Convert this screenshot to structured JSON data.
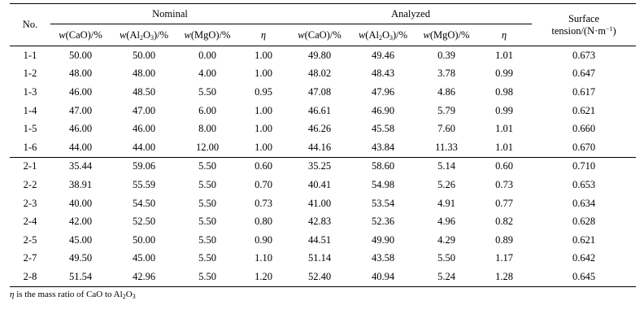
{
  "headers": {
    "no": "No.",
    "nominal": "Nominal",
    "analyzed": "Analyzed",
    "surface_line1": "Surface",
    "surface_line2_a": "tension/(N·m",
    "surface_line2_sup": "−1",
    "surface_line2_b": ")",
    "w_prefix": "w",
    "cao": "(CaO)/%",
    "al_a": "(Al",
    "al_sub1": "2",
    "al_b": "O",
    "al_sub2": "3",
    "al_c": ")/%",
    "mgo": "(MgO)/%",
    "eta": "η"
  },
  "rows_group1": [
    [
      "1-1",
      "50.00",
      "50.00",
      "0.00",
      "1.00",
      "49.80",
      "49.46",
      "0.39",
      "1.01",
      "0.673"
    ],
    [
      "1-2",
      "48.00",
      "48.00",
      "4.00",
      "1.00",
      "48.02",
      "48.43",
      "3.78",
      "0.99",
      "0.647"
    ],
    [
      "1-3",
      "46.00",
      "48.50",
      "5.50",
      "0.95",
      "47.08",
      "47.96",
      "4.86",
      "0.98",
      "0.617"
    ],
    [
      "1-4",
      "47.00",
      "47.00",
      "6.00",
      "1.00",
      "46.61",
      "46.90",
      "5.79",
      "0.99",
      "0.621"
    ],
    [
      "1-5",
      "46.00",
      "46.00",
      "8.00",
      "1.00",
      "46.26",
      "45.58",
      "7.60",
      "1.01",
      "0.660"
    ],
    [
      "1-6",
      "44.00",
      "44.00",
      "12.00",
      "1.00",
      "44.16",
      "43.84",
      "11.33",
      "1.01",
      "0.670"
    ]
  ],
  "rows_group2": [
    [
      "2-1",
      "35.44",
      "59.06",
      "5.50",
      "0.60",
      "35.25",
      "58.60",
      "5.14",
      "0.60",
      "0.710"
    ],
    [
      "2-2",
      "38.91",
      "55.59",
      "5.50",
      "0.70",
      "40.41",
      "54.98",
      "5.26",
      "0.73",
      "0.653"
    ],
    [
      "2-3",
      "40.00",
      "54.50",
      "5.50",
      "0.73",
      "41.00",
      "53.54",
      "4.91",
      "0.77",
      "0.634"
    ],
    [
      "2-4",
      "42.00",
      "52.50",
      "5.50",
      "0.80",
      "42.83",
      "52.36",
      "4.96",
      "0.82",
      "0.628"
    ],
    [
      "2-5",
      "45.00",
      "50.00",
      "5.50",
      "0.90",
      "44.51",
      "49.90",
      "4.29",
      "0.89",
      "0.621"
    ],
    [
      "2-7",
      "49.50",
      "45.00",
      "5.50",
      "1.10",
      "51.14",
      "43.58",
      "5.50",
      "1.17",
      "0.642"
    ],
    [
      "2-8",
      "51.54",
      "42.96",
      "5.50",
      "1.20",
      "52.40",
      "40.94",
      "5.24",
      "1.28",
      "0.645"
    ]
  ],
  "footnote": {
    "eta": "η",
    "text_a": " is the mass ratio of CaO to Al",
    "sub1": "2",
    "text_b": "O",
    "sub2": "3"
  }
}
